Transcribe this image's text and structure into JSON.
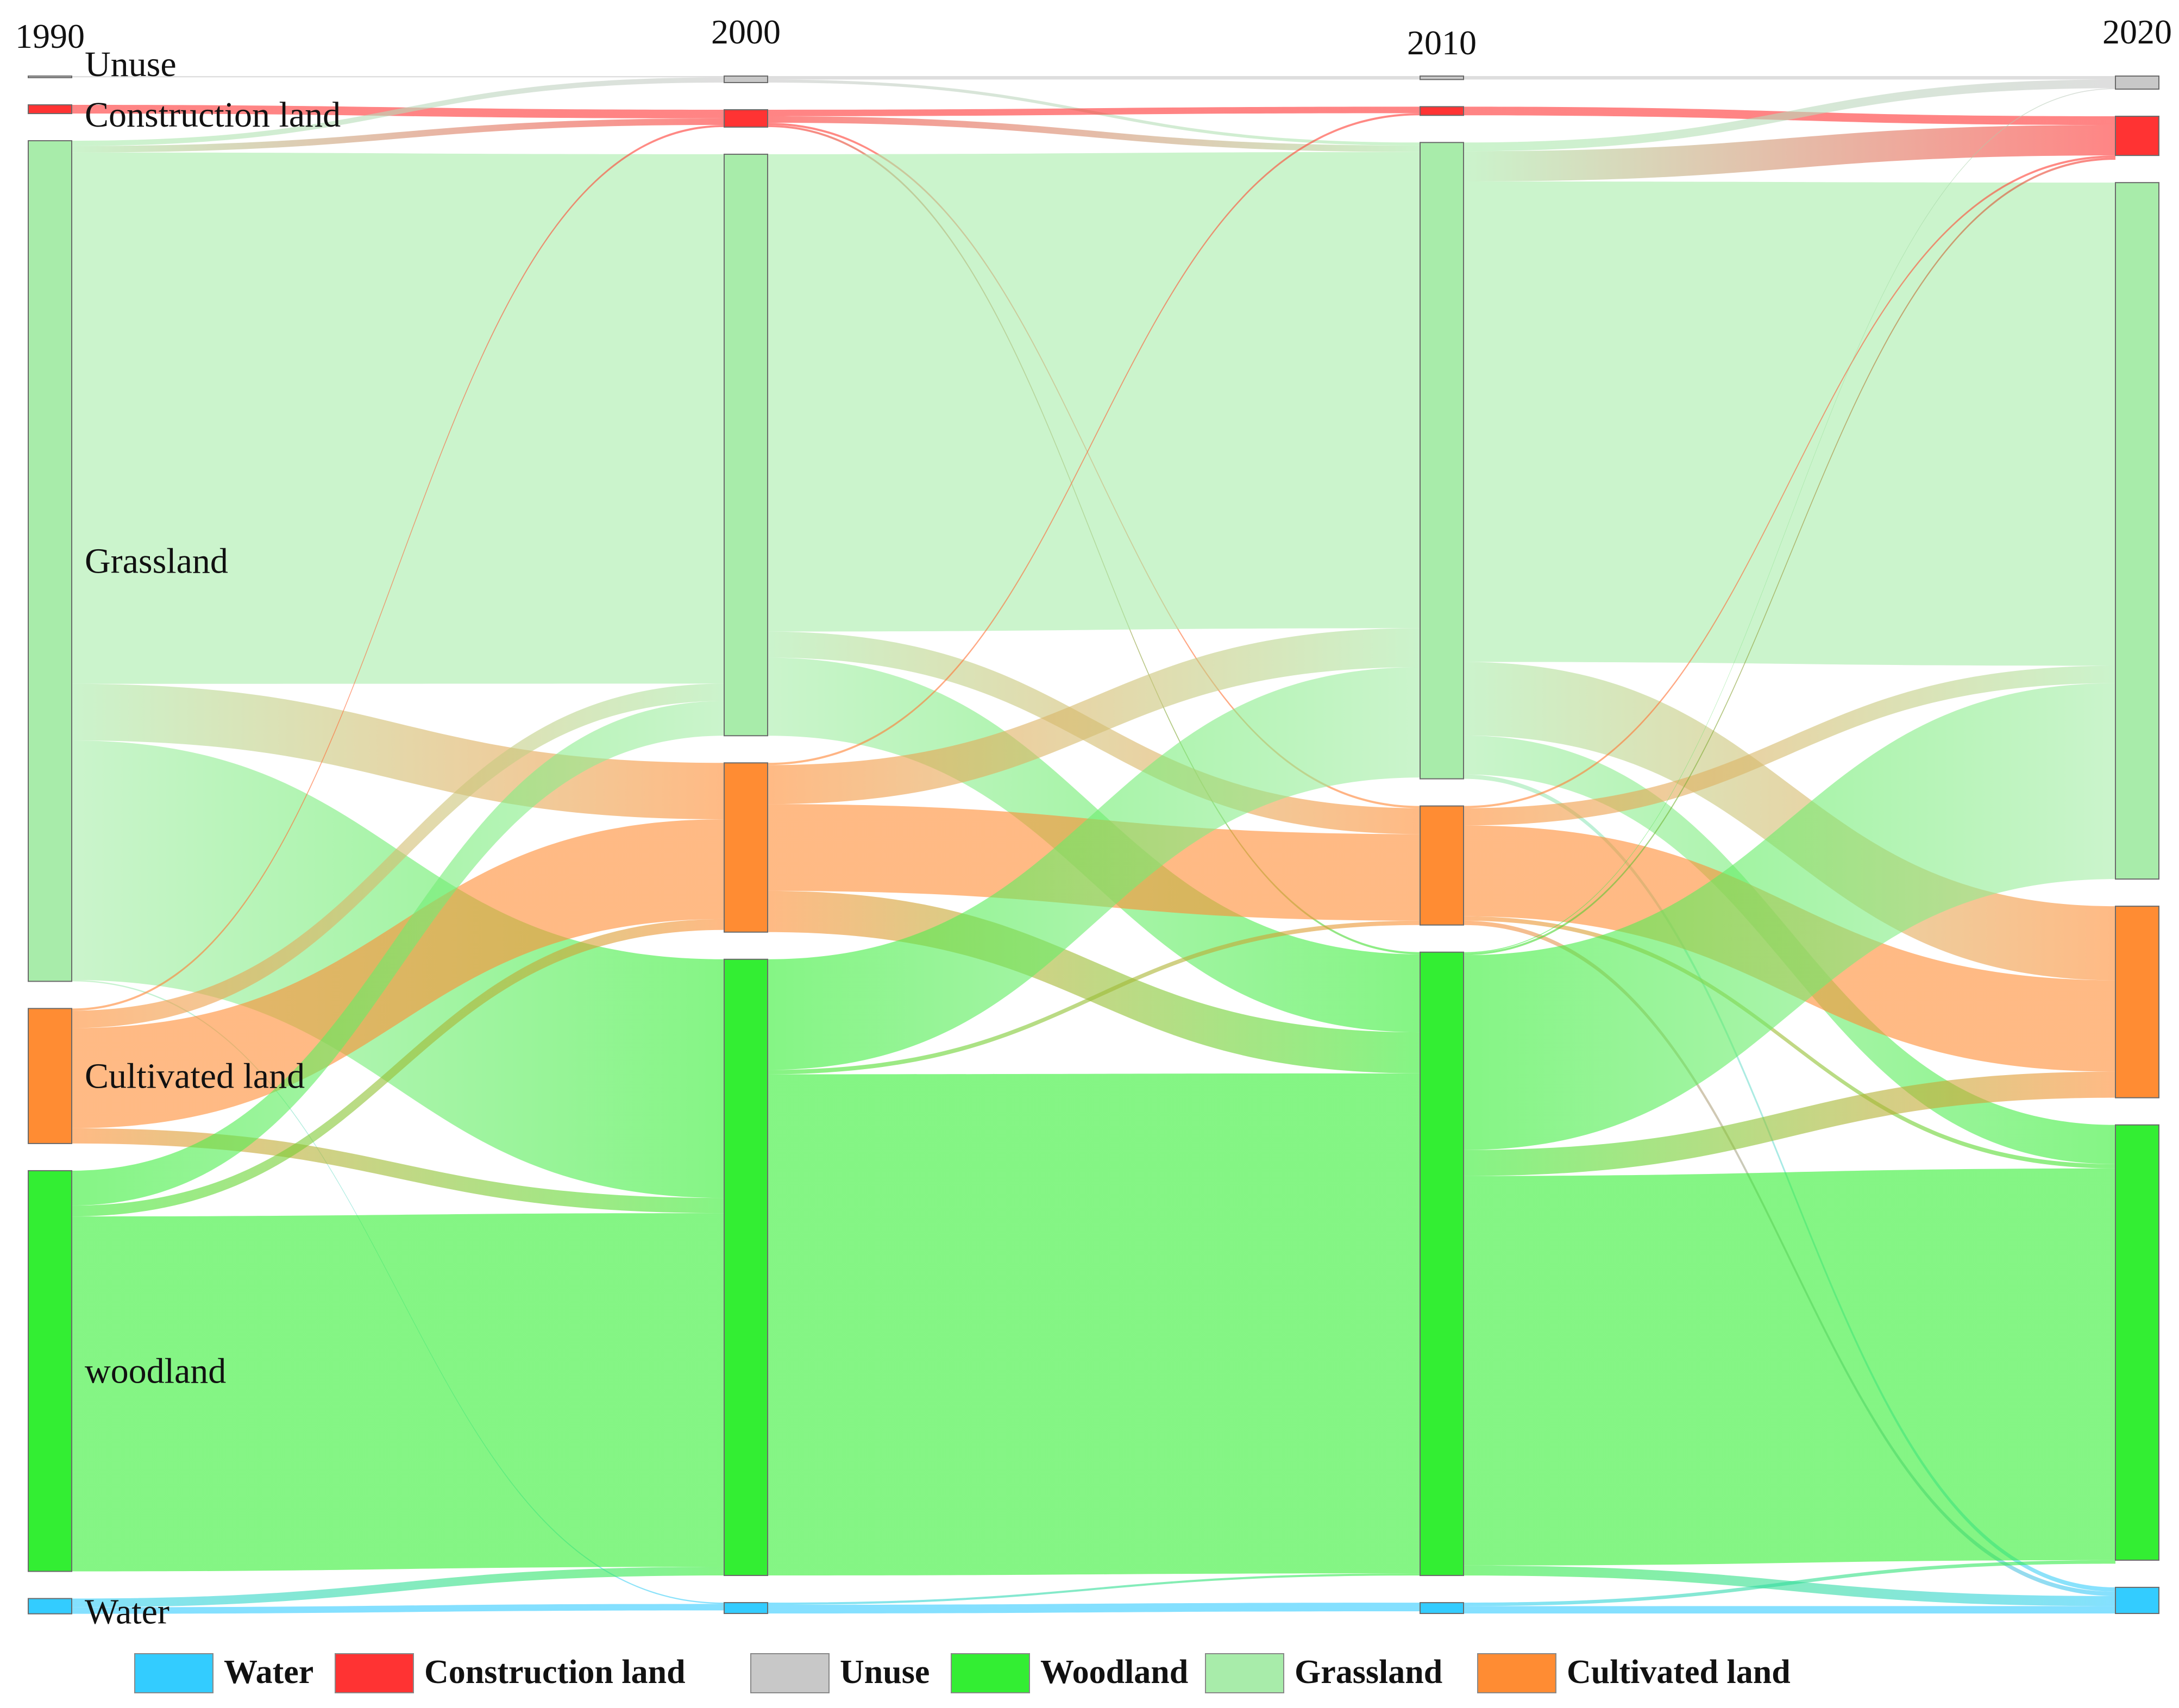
{
  "chart_data": {
    "type": "sankey",
    "title": "",
    "years": [
      "1990",
      "2000",
      "2010",
      "2020"
    ],
    "categories": [
      {
        "key": "unuse",
        "label": "Unuse",
        "color": "#c8c8c8"
      },
      {
        "key": "construction",
        "label": "Construction land",
        "color": "#ff3333"
      },
      {
        "key": "grassland",
        "label": "Grassland",
        "color": "#a8ecaa"
      },
      {
        "key": "cultivated",
        "label": "Cultivated land",
        "color": "#ff8c33"
      },
      {
        "key": "woodland",
        "label": "woodland",
        "color": "#33ee33"
      },
      {
        "key": "water",
        "label": "Water",
        "color": "#33ccff"
      }
    ],
    "node_values": [
      {
        "unuse": 0.3,
        "construction": 2,
        "grassland": 193,
        "cultivated": 31,
        "woodland": 92,
        "water": 3.5
      },
      {
        "unuse": 1.5,
        "construction": 4,
        "grassland": 134,
        "cultivated": 39,
        "woodland": 142,
        "water": 2.5
      },
      {
        "unuse": 0.8,
        "construction": 2,
        "grassland": 147,
        "cultivated": 27.5,
        "woodland": 144,
        "water": 2.5
      },
      {
        "unuse": 3,
        "construction": 9,
        "grassland": 160,
        "cultivated": 44,
        "woodland": 100,
        "water": 6
      }
    ],
    "flows": [
      [
        {
          "from": "unuse",
          "to": "unuse",
          "value": 0.3
        },
        {
          "from": "construction",
          "to": "construction",
          "value": 2
        },
        {
          "from": "grassland",
          "to": "unuse",
          "value": 1.2
        },
        {
          "from": "grassland",
          "to": "construction",
          "value": 1.5
        },
        {
          "from": "grassland",
          "to": "grassland",
          "value": 122
        },
        {
          "from": "grassland",
          "to": "cultivated",
          "value": 13
        },
        {
          "from": "grassland",
          "to": "woodland",
          "value": 55
        },
        {
          "from": "grassland",
          "to": "water",
          "value": 0.3
        },
        {
          "from": "cultivated",
          "to": "construction",
          "value": 0.5
        },
        {
          "from": "cultivated",
          "to": "grassland",
          "value": 4
        },
        {
          "from": "cultivated",
          "to": "cultivated",
          "value": 23
        },
        {
          "from": "cultivated",
          "to": "woodland",
          "value": 3.5
        },
        {
          "from": "woodland",
          "to": "grassland",
          "value": 8
        },
        {
          "from": "woodland",
          "to": "cultivated",
          "value": 2.5
        },
        {
          "from": "woodland",
          "to": "woodland",
          "value": 81.5
        },
        {
          "from": "water",
          "to": "woodland",
          "value": 2
        },
        {
          "from": "water",
          "to": "water",
          "value": 1.5
        }
      ],
      [
        {
          "from": "unuse",
          "to": "unuse",
          "value": 0.8
        },
        {
          "from": "unuse",
          "to": "grassland",
          "value": 0.7
        },
        {
          "from": "construction",
          "to": "construction",
          "value": 1.5
        },
        {
          "from": "construction",
          "to": "grassland",
          "value": 1.5
        },
        {
          "from": "construction",
          "to": "cultivated",
          "value": 0.5
        },
        {
          "from": "construction",
          "to": "woodland",
          "value": 0.5
        },
        {
          "from": "grassland",
          "to": "grassland",
          "value": 110
        },
        {
          "from": "grassland",
          "to": "cultivated",
          "value": 6
        },
        {
          "from": "grassland",
          "to": "woodland",
          "value": 18
        },
        {
          "from": "cultivated",
          "to": "construction",
          "value": 0.5
        },
        {
          "from": "cultivated",
          "to": "grassland",
          "value": 9
        },
        {
          "from": "cultivated",
          "to": "cultivated",
          "value": 20
        },
        {
          "from": "cultivated",
          "to": "woodland",
          "value": 9.5
        },
        {
          "from": "woodland",
          "to": "grassland",
          "value": 25.5
        },
        {
          "from": "woodland",
          "to": "cultivated",
          "value": 1
        },
        {
          "from": "woodland",
          "to": "woodland",
          "value": 115.5
        },
        {
          "from": "water",
          "to": "woodland",
          "value": 0.5
        },
        {
          "from": "water",
          "to": "water",
          "value": 2
        }
      ],
      [
        {
          "from": "unuse",
          "to": "unuse",
          "value": 0.8
        },
        {
          "from": "construction",
          "to": "construction",
          "value": 2
        },
        {
          "from": "grassland",
          "to": "unuse",
          "value": 2
        },
        {
          "from": "grassland",
          "to": "construction",
          "value": 7
        },
        {
          "from": "grassland",
          "to": "grassland",
          "value": 111
        },
        {
          "from": "grassland",
          "to": "cultivated",
          "value": 17
        },
        {
          "from": "grassland",
          "to": "woodland",
          "value": 9
        },
        {
          "from": "grassland",
          "to": "water",
          "value": 1
        },
        {
          "from": "cultivated",
          "to": "construction",
          "value": 0.5
        },
        {
          "from": "cultivated",
          "to": "grassland",
          "value": 4
        },
        {
          "from": "cultivated",
          "to": "cultivated",
          "value": 21
        },
        {
          "from": "cultivated",
          "to": "woodland",
          "value": 1
        },
        {
          "from": "cultivated",
          "to": "water",
          "value": 1
        },
        {
          "from": "woodland",
          "to": "unuse",
          "value": 0.2
        },
        {
          "from": "woodland",
          "to": "construction",
          "value": 0.5
        },
        {
          "from": "woodland",
          "to": "grassland",
          "value": 45
        },
        {
          "from": "woodland",
          "to": "cultivated",
          "value": 6
        },
        {
          "from": "woodland",
          "to": "woodland",
          "value": 90
        },
        {
          "from": "woodland",
          "to": "water",
          "value": 2.3
        },
        {
          "from": "water",
          "to": "water",
          "value": 1.7
        },
        {
          "from": "water",
          "to": "woodland",
          "value": 0.8
        }
      ]
    ],
    "legend": [
      {
        "label": "Water",
        "color": "#33ccff"
      },
      {
        "label": "Construction land",
        "color": "#ff3333"
      },
      {
        "label": "Unuse",
        "color": "#c8c8c8"
      },
      {
        "label": "Woodland",
        "color": "#33ee33"
      },
      {
        "label": "Grassland",
        "color": "#a8ecaa"
      },
      {
        "label": "Cultivated land",
        "color": "#ff8c33"
      }
    ]
  }
}
